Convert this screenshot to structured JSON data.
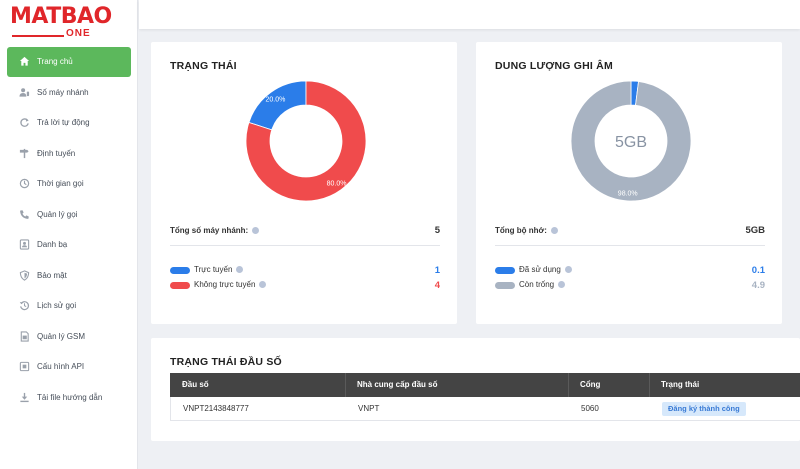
{
  "brand": {
    "word": "MATBAO",
    "sub": "ONE"
  },
  "sidebar": {
    "items": [
      {
        "label": "Trang chủ",
        "icon": "home-icon",
        "active": true
      },
      {
        "label": "Số máy nhánh",
        "icon": "user-phone-icon"
      },
      {
        "label": "Trả lời tự động",
        "icon": "refresh-icon"
      },
      {
        "label": "Định tuyến",
        "icon": "signpost-icon"
      },
      {
        "label": "Thời gian gọi",
        "icon": "clock-icon"
      },
      {
        "label": "Quản lý gọi",
        "icon": "phone-icon"
      },
      {
        "label": "Danh bạ",
        "icon": "contacts-icon"
      },
      {
        "label": "Bảo mật",
        "icon": "shield-icon"
      },
      {
        "label": "Lịch sử gọi",
        "icon": "history-icon"
      },
      {
        "label": "Quản lý GSM",
        "icon": "sim-icon"
      },
      {
        "label": "Cấu hình API",
        "icon": "api-icon"
      },
      {
        "label": "Tải file hướng dẫn",
        "icon": "download-icon"
      }
    ]
  },
  "status_card": {
    "title": "TRẠNG THÁI",
    "total_label": "Tổng số máy nhánh:",
    "total_value": "5",
    "legend": [
      {
        "label": "Trực tuyến",
        "value": "1",
        "color": "#2b7de9"
      },
      {
        "label": "Không trực tuyến",
        "value": "4",
        "color": "#f04b4c"
      }
    ]
  },
  "storage_card": {
    "title": "DUNG LƯỢNG GHI ÂM",
    "center_text": "5GB",
    "total_label": "Tổng bộ nhớ:",
    "total_value": "5GB",
    "legend": [
      {
        "label": "Đã sử dụng",
        "value": "0.1",
        "color": "#2b7de9"
      },
      {
        "label": "Còn trống",
        "value": "4.9",
        "color": "#a8b3c2"
      }
    ]
  },
  "chart_data": [
    {
      "type": "pie",
      "title": "TRẠNG THÁI",
      "categories": [
        "Trực tuyến",
        "Không trực tuyến"
      ],
      "values": [
        20.0,
        80.0
      ],
      "labels": [
        "20.0%",
        "80.0%"
      ],
      "colors": [
        "#2b7de9",
        "#f04b4c"
      ]
    },
    {
      "type": "pie",
      "title": "DUNG LƯỢNG GHI ÂM",
      "categories": [
        "Đã sử dụng",
        "Còn trống"
      ],
      "values": [
        2.0,
        98.0
      ],
      "labels": [
        "",
        "98.0%"
      ],
      "colors": [
        "#2b7de9",
        "#a8b3c2"
      ]
    }
  ],
  "numbers_card": {
    "title": "TRẠNG THÁI ĐẦU SỐ",
    "columns": [
      "Đầu số",
      "Nhà cung cấp đầu số",
      "Cổng",
      "Trạng thái"
    ],
    "rows": [
      {
        "number": "VNPT2143848777",
        "provider": "VNPT",
        "port": "5060",
        "status": "Đăng ký thành công"
      }
    ]
  }
}
